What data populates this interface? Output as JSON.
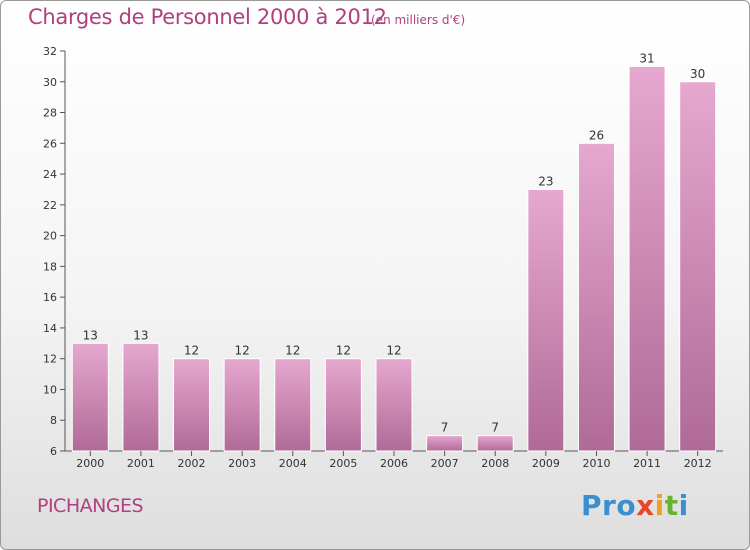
{
  "header": {
    "title": "Charges de Personnel 2000 à 2012",
    "subtitle": "(en milliers d'€)"
  },
  "footer": {
    "commune": "PICHANGES",
    "logo": {
      "letters": [
        {
          "ch": "P",
          "color": "#3a8fd0"
        },
        {
          "ch": "r",
          "color": "#3a8fd0"
        },
        {
          "ch": "o",
          "color": "#3a8fd0"
        },
        {
          "ch": "x",
          "color": "#e8472e"
        },
        {
          "ch": "i",
          "color": "#f0a020"
        },
        {
          "ch": "t",
          "color": "#6ab232"
        },
        {
          "ch": "i",
          "color": "#3a8fd0"
        }
      ]
    }
  },
  "colors": {
    "title": "#b0407f",
    "bar_top": "#e6a8cf",
    "bar_bottom": "#b06a98",
    "axis": "#555555"
  },
  "chart_data": {
    "type": "bar",
    "title": "Charges de Personnel 2000 à 2012",
    "subtitle": "(en milliers d'€)",
    "categories": [
      "2000",
      "2001",
      "2002",
      "2003",
      "2004",
      "2005",
      "2006",
      "2007",
      "2008",
      "2009",
      "2010",
      "2011",
      "2012"
    ],
    "values": [
      13,
      13,
      12,
      12,
      12,
      12,
      12,
      7,
      7,
      23,
      26,
      31,
      30
    ],
    "ylim": [
      6,
      32
    ],
    "yticks": [
      6,
      8,
      10,
      12,
      14,
      16,
      18,
      20,
      22,
      24,
      26,
      28,
      30,
      32
    ],
    "grid": false,
    "legend": "none"
  }
}
